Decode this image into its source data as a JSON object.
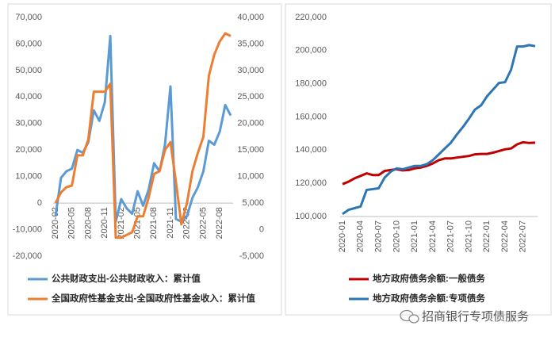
{
  "chart_data": [
    {
      "type": "line",
      "categories": [
        "2020-02",
        null,
        null,
        "2020-05",
        null,
        null,
        "2020-08",
        null,
        null,
        "2020-11",
        null,
        null,
        "2021-02",
        null,
        null,
        "2021-05",
        null,
        null,
        "2021-08",
        null,
        null,
        "2021-11",
        null,
        null,
        "2022-02",
        null,
        null,
        "2022-05",
        null,
        null,
        "2022-08",
        null,
        null
      ],
      "series": [
        {
          "name": "公共财政支出-公共财政收入：累计值",
          "color": "#5b9bd5",
          "values": [
            -5000,
            9500,
            12000,
            13000,
            20000,
            19000,
            23000,
            35000,
            31000,
            38000,
            63000,
            -7000,
            1500,
            -2000,
            -4000,
            4500,
            -1000,
            5000,
            15000,
            12000,
            22000,
            44000,
            -6000,
            -7000,
            -5000,
            2000,
            6000,
            12000,
            23500,
            22000,
            27000,
            37000,
            33000
          ]
        },
        {
          "name": "全国政府性基金支出-全国政府性基金收入：累计值",
          "color": "#ed7d31",
          "axis": "y2",
          "values": [
            5000,
            7000,
            8000,
            8300,
            14000,
            14000,
            17000,
            26000,
            26000,
            26000,
            27500,
            -1500,
            -1500,
            -1000,
            -500,
            2500,
            2500,
            6000,
            10500,
            11000,
            15000,
            16500,
            9000,
            1000,
            5000,
            11000,
            14500,
            17500,
            29000,
            33000,
            35500,
            37000,
            36500
          ]
        }
      ],
      "ylim": [
        -20000,
        70000
      ],
      "yticks": [
        {
          "value": -20000,
          "label": "-20,000"
        },
        {
          "value": -10000,
          "label": "-10,000"
        },
        0,
        {
          "value": 10000,
          "label": "10,000"
        },
        {
          "value": 20000,
          "label": "20,000"
        },
        {
          "value": 30000,
          "label": "30,000"
        },
        {
          "value": 40000,
          "label": "40,000"
        },
        {
          "value": 50000,
          "label": "50,000"
        },
        {
          "value": 60000,
          "label": "60,000"
        },
        {
          "value": 70000,
          "label": "70,000"
        }
      ],
      "y2lim": [
        -5000,
        40000
      ],
      "y2ticks": [
        {
          "value": -5000,
          "label": "-5,000"
        },
        0,
        {
          "value": 5000,
          "label": "5,000"
        },
        {
          "value": 10000,
          "label": "10,000"
        },
        {
          "value": 15000,
          "label": "15,000"
        },
        {
          "value": 20000,
          "label": "20,000"
        },
        {
          "value": 25000,
          "label": "25,000"
        },
        {
          "value": 30000,
          "label": "30,000"
        },
        {
          "value": 35000,
          "label": "35,000"
        },
        {
          "value": 40000,
          "label": "40,000"
        }
      ],
      "grid": false,
      "legend": "bottom"
    },
    {
      "type": "line",
      "categories": [
        "2020-01",
        null,
        null,
        "2020-04",
        null,
        null,
        "2020-07",
        null,
        null,
        "2020-10",
        null,
        null,
        "2021-01",
        null,
        null,
        "2021-04",
        null,
        null,
        "2021-07",
        null,
        null,
        "2021-10",
        null,
        null,
        "2022-01",
        null,
        null,
        "2022-04",
        null,
        null,
        "2022-07",
        null,
        null
      ],
      "series": [
        {
          "name": "地方政府债务余额:一般债务",
          "color": "#c00000",
          "values": [
            119500,
            121000,
            123000,
            124500,
            126000,
            125000,
            125000,
            127500,
            128000,
            128500,
            127800,
            128000,
            129000,
            129500,
            130500,
            132000,
            134000,
            135000,
            135000,
            135500,
            136000,
            136500,
            137500,
            137700,
            137700,
            138500,
            139500,
            140500,
            141000,
            143500,
            144800,
            144300,
            144500
          ]
        },
        {
          "name": "地方政府债务余额:专项债务",
          "color": "#2e75b6",
          "values": [
            101500,
            104000,
            105000,
            106000,
            116000,
            116500,
            117000,
            123500,
            127000,
            129000,
            128500,
            129500,
            130500,
            130500,
            131500,
            134000,
            137500,
            141000,
            144500,
            149500,
            154000,
            159000,
            164500,
            167000,
            172500,
            176500,
            180500,
            181000,
            188500,
            202500,
            202500,
            203300,
            202700
          ]
        }
      ],
      "ylim": [
        100000,
        220000
      ],
      "yticks": [
        {
          "value": 100000,
          "label": "100,000"
        },
        {
          "value": 120000,
          "label": "120,000"
        },
        {
          "value": 140000,
          "label": "140,000"
        },
        {
          "value": 160000,
          "label": "160,000"
        },
        {
          "value": 180000,
          "label": "180,000"
        },
        {
          "value": 200000,
          "label": "200,000"
        },
        {
          "value": 220000,
          "label": "220,000"
        }
      ],
      "grid": false,
      "legend": "bottom"
    }
  ],
  "watermark": "招商银行专项债服务"
}
